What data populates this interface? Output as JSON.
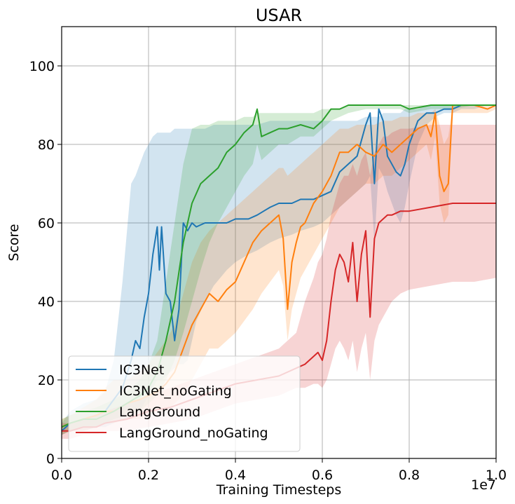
{
  "chart_data": {
    "type": "line",
    "title": "USAR",
    "xlabel": "Training Timesteps",
    "ylabel": "Score",
    "x_offset_label": "1e7",
    "xlim": [
      0,
      1.0
    ],
    "ylim": [
      0,
      110
    ],
    "x_ticks": [
      0,
      0.2,
      0.4,
      0.6,
      0.8,
      1.0
    ],
    "x_tick_labels": [
      "0.0",
      "0.2",
      "0.4",
      "0.6",
      "0.8",
      "1.0"
    ],
    "y_ticks": [
      0,
      20,
      40,
      60,
      80,
      100
    ],
    "y_tick_labels": [
      "0",
      "20",
      "40",
      "60",
      "80",
      "100"
    ],
    "grid": true,
    "legend_position": "lower-left",
    "series": [
      {
        "name": "IC3Net",
        "color": "#1f77b4",
        "x": [
          0.0,
          0.02,
          0.05,
          0.08,
          0.1,
          0.12,
          0.14,
          0.16,
          0.17,
          0.18,
          0.19,
          0.2,
          0.21,
          0.22,
          0.225,
          0.23,
          0.24,
          0.25,
          0.26,
          0.27,
          0.28,
          0.29,
          0.3,
          0.31,
          0.33,
          0.35,
          0.38,
          0.4,
          0.43,
          0.45,
          0.48,
          0.5,
          0.53,
          0.55,
          0.58,
          0.6,
          0.62,
          0.64,
          0.66,
          0.68,
          0.7,
          0.71,
          0.72,
          0.73,
          0.74,
          0.75,
          0.77,
          0.78,
          0.79,
          0.8,
          0.82,
          0.84,
          0.86,
          0.88,
          0.9,
          0.92,
          0.95,
          0.98,
          1.0
        ],
        "y": [
          7,
          9,
          10,
          11,
          12,
          15,
          18,
          25,
          30,
          28,
          36,
          42,
          52,
          59,
          48,
          59,
          42,
          40,
          30,
          38,
          60,
          58,
          60,
          59,
          60,
          60,
          60,
          61,
          61,
          62,
          64,
          65,
          65,
          66,
          66,
          67,
          68,
          73,
          75,
          77,
          85,
          88,
          70,
          89,
          86,
          77,
          73,
          72,
          75,
          80,
          86,
          88,
          88,
          89,
          89,
          90,
          90,
          90,
          90
        ],
        "band_upper": [
          9,
          12,
          14,
          15,
          17,
          25,
          45,
          70,
          72,
          75,
          78,
          80,
          82,
          83,
          83,
          83,
          83,
          83,
          84,
          84,
          84,
          84,
          84,
          84,
          84,
          85,
          85,
          85,
          85,
          85,
          86,
          86,
          86,
          86,
          86,
          86,
          86,
          86,
          86,
          86,
          87,
          87,
          87,
          87,
          88,
          88,
          88,
          88,
          89,
          89,
          89,
          90,
          90,
          90,
          90,
          90,
          90,
          90,
          90
        ],
        "band_lower": [
          6,
          7,
          7,
          8,
          8,
          9,
          10,
          10,
          11,
          12,
          14,
          16,
          18,
          20,
          20,
          20,
          21,
          22,
          23,
          24,
          24,
          25,
          30,
          35,
          40,
          44,
          48,
          50,
          52,
          53,
          55,
          56,
          57,
          58,
          59,
          60,
          62,
          64,
          66,
          68,
          70,
          72,
          55,
          74,
          72,
          68,
          62,
          60,
          64,
          70,
          80,
          85,
          87,
          88,
          88,
          89,
          89,
          90,
          90
        ]
      },
      {
        "name": "IC3Net_noGating",
        "color": "#ff7f0e",
        "x": [
          0.0,
          0.02,
          0.05,
          0.08,
          0.1,
          0.12,
          0.15,
          0.18,
          0.2,
          0.22,
          0.24,
          0.26,
          0.28,
          0.3,
          0.32,
          0.34,
          0.36,
          0.38,
          0.4,
          0.42,
          0.44,
          0.46,
          0.48,
          0.5,
          0.51,
          0.52,
          0.53,
          0.54,
          0.55,
          0.56,
          0.58,
          0.6,
          0.62,
          0.64,
          0.66,
          0.68,
          0.7,
          0.72,
          0.74,
          0.76,
          0.78,
          0.8,
          0.82,
          0.84,
          0.85,
          0.86,
          0.87,
          0.88,
          0.89,
          0.9,
          0.92,
          0.95,
          0.98,
          1.0
        ],
        "y": [
          8,
          9,
          10,
          11,
          12,
          12,
          14,
          15,
          16,
          17,
          19,
          22,
          28,
          34,
          38,
          42,
          40,
          43,
          45,
          50,
          55,
          58,
          60,
          62,
          56,
          38,
          50,
          55,
          59,
          60,
          65,
          68,
          72,
          78,
          78,
          80,
          78,
          77,
          80,
          78,
          80,
          82,
          84,
          85,
          82,
          88,
          72,
          68,
          70,
          90,
          90,
          90,
          89,
          90
        ],
        "band_upper": [
          10,
          11,
          13,
          15,
          18,
          20,
          20,
          22,
          24,
          27,
          30,
          34,
          42,
          50,
          55,
          58,
          60,
          62,
          64,
          66,
          68,
          70,
          72,
          74,
          74,
          72,
          73,
          74,
          75,
          76,
          78,
          80,
          82,
          84,
          84,
          85,
          85,
          85,
          86,
          86,
          87,
          87,
          88,
          88,
          88,
          89,
          85,
          80,
          82,
          90,
          90,
          90,
          90,
          90
        ],
        "band_lower": [
          6,
          7,
          7,
          8,
          9,
          9,
          10,
          10,
          11,
          12,
          12,
          14,
          16,
          20,
          24,
          28,
          28,
          30,
          32,
          35,
          38,
          42,
          45,
          48,
          44,
          30,
          38,
          42,
          46,
          48,
          52,
          56,
          60,
          64,
          66,
          68,
          70,
          70,
          72,
          72,
          74,
          76,
          78,
          80,
          76,
          82,
          65,
          60,
          62,
          88,
          88,
          88,
          88,
          89
        ]
      },
      {
        "name": "LangGround",
        "color": "#2ca02c",
        "x": [
          0.0,
          0.02,
          0.05,
          0.08,
          0.1,
          0.12,
          0.15,
          0.18,
          0.2,
          0.22,
          0.24,
          0.26,
          0.28,
          0.3,
          0.32,
          0.34,
          0.36,
          0.38,
          0.4,
          0.42,
          0.44,
          0.45,
          0.46,
          0.48,
          0.5,
          0.52,
          0.55,
          0.58,
          0.6,
          0.62,
          0.64,
          0.66,
          0.7,
          0.74,
          0.78,
          0.8,
          0.85,
          0.9,
          0.95,
          1.0
        ],
        "y": [
          8,
          9,
          10,
          10,
          11,
          12,
          14,
          16,
          18,
          22,
          30,
          40,
          55,
          65,
          70,
          72,
          74,
          78,
          80,
          83,
          85,
          89,
          82,
          83,
          84,
          84,
          85,
          84,
          86,
          89,
          89,
          90,
          90,
          90,
          90,
          89,
          90,
          90,
          90,
          90
        ],
        "band_upper": [
          10,
          11,
          12,
          13,
          14,
          15,
          17,
          20,
          24,
          30,
          45,
          60,
          75,
          84,
          85,
          85,
          86,
          86,
          86,
          87,
          87,
          88,
          88,
          88,
          88,
          88,
          88,
          88,
          89,
          89,
          89,
          90,
          90,
          90,
          90,
          90,
          90,
          90,
          90,
          90
        ],
        "band_lower": [
          6,
          7,
          8,
          8,
          9,
          10,
          11,
          12,
          14,
          16,
          20,
          25,
          32,
          40,
          48,
          55,
          60,
          64,
          68,
          72,
          75,
          80,
          76,
          78,
          80,
          80,
          82,
          82,
          84,
          86,
          87,
          88,
          89,
          89,
          89,
          88,
          89,
          89,
          90,
          90
        ]
      },
      {
        "name": "LangGround_noGating",
        "color": "#d62728",
        "x": [
          0.0,
          0.02,
          0.05,
          0.08,
          0.1,
          0.15,
          0.2,
          0.25,
          0.3,
          0.35,
          0.4,
          0.45,
          0.5,
          0.54,
          0.56,
          0.58,
          0.59,
          0.6,
          0.61,
          0.62,
          0.63,
          0.64,
          0.65,
          0.66,
          0.67,
          0.68,
          0.69,
          0.7,
          0.71,
          0.72,
          0.73,
          0.74,
          0.75,
          0.76,
          0.78,
          0.8,
          0.85,
          0.9,
          0.95,
          1.0
        ],
        "y": [
          7,
          7,
          8,
          8,
          9,
          10,
          12,
          13,
          15,
          17,
          19,
          20,
          21,
          23,
          24,
          26,
          27,
          25,
          30,
          40,
          48,
          52,
          50,
          45,
          55,
          40,
          52,
          58,
          36,
          56,
          60,
          61,
          62,
          62,
          63,
          63,
          64,
          65,
          65,
          65
        ],
        "band_upper": [
          9,
          9,
          10,
          11,
          12,
          14,
          16,
          18,
          20,
          22,
          24,
          26,
          28,
          32,
          40,
          46,
          50,
          52,
          56,
          62,
          66,
          70,
          72,
          72,
          75,
          72,
          76,
          78,
          72,
          78,
          80,
          82,
          82,
          83,
          84,
          84,
          85,
          85,
          85,
          85
        ],
        "band_lower": [
          5,
          5,
          6,
          6,
          7,
          7,
          8,
          9,
          10,
          12,
          14,
          15,
          16,
          18,
          18,
          19,
          19,
          18,
          20,
          24,
          28,
          30,
          28,
          25,
          30,
          22,
          28,
          32,
          20,
          30,
          34,
          36,
          38,
          40,
          42,
          43,
          44,
          45,
          45,
          46
        ]
      }
    ]
  }
}
